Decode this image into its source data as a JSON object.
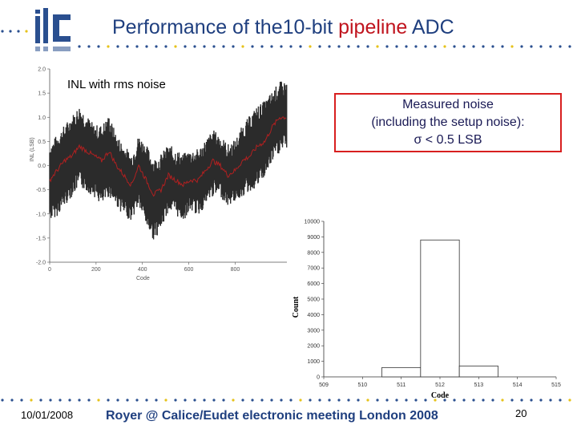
{
  "slide": {
    "title_pre": "Performance of the10-bit ",
    "title_highlight": "pipeline",
    "title_post": " ADC",
    "inl_label": "INL with rms noise",
    "noise_box_line1": "Measured noise",
    "noise_box_line2": "(including the setup noise):",
    "noise_box_line3": "σ < 0.5 LSB",
    "footer_date": "10/01/2008",
    "footer_center": "Royer @ Calice/Eudet electronic meeting London 2008",
    "footer_page": "20"
  },
  "colors": {
    "title_blue": "#1f3f7f",
    "highlight_red": "#c0141e",
    "box_border": "#d81f1f",
    "dot_blue": "#2a4f8f",
    "dot_yellow": "#e6c21a",
    "inl_band": "#2b2b2b",
    "inl_mean": "#b02020"
  },
  "chart_data": [
    {
      "type": "line",
      "title": "",
      "xlabel": "Code",
      "ylabel": "INL (LSB)",
      "xlim": [
        0,
        1023
      ],
      "ylim": [
        -2.0,
        2.0
      ],
      "xticks": [
        "0",
        "200",
        "400",
        "600",
        "800"
      ],
      "yticks": [
        "2.0",
        "1.5",
        "1.0",
        "0.5",
        "0.0",
        "-0.5",
        "-1.0",
        "-1.5",
        "-2.0"
      ],
      "x": [
        0,
        32,
        64,
        96,
        128,
        160,
        192,
        224,
        256,
        288,
        320,
        352,
        384,
        416,
        448,
        480,
        512,
        544,
        576,
        608,
        640,
        672,
        704,
        736,
        768,
        800,
        832,
        864,
        896,
        928,
        960,
        992,
        1023
      ],
      "series": [
        {
          "name": "",
          "mean": [
            -0.3,
            -0.1,
            0.1,
            0.2,
            0.4,
            0.3,
            0.2,
            0.1,
            0.3,
            0.0,
            -0.2,
            -0.4,
            0.0,
            -0.3,
            -0.6,
            -0.5,
            -0.2,
            -0.3,
            -0.4,
            -0.3,
            -0.3,
            -0.1,
            0.1,
            0.0,
            -0.2,
            -0.1,
            0.1,
            0.2,
            0.4,
            0.5,
            0.8,
            1.0,
            1.0
          ],
          "upper": [
            0.2,
            0.4,
            0.6,
            0.8,
            1.0,
            0.8,
            0.6,
            0.6,
            0.8,
            0.4,
            0.2,
            0.0,
            0.4,
            0.2,
            -0.1,
            0.0,
            0.2,
            0.1,
            0.0,
            0.1,
            0.1,
            0.3,
            0.5,
            0.4,
            0.2,
            0.3,
            0.6,
            0.8,
            1.0,
            1.1,
            1.3,
            1.5,
            1.5
          ],
          "lower": [
            -0.9,
            -0.8,
            -0.6,
            -0.4,
            -0.2,
            -0.3,
            -0.4,
            -0.6,
            -0.4,
            -0.6,
            -0.8,
            -0.9,
            -0.6,
            -1.0,
            -1.3,
            -1.1,
            -0.7,
            -0.8,
            -0.9,
            -0.7,
            -0.8,
            -0.6,
            -0.4,
            -0.4,
            -0.6,
            -0.5,
            -0.4,
            -0.3,
            -0.2,
            0.0,
            0.3,
            0.5,
            0.6
          ]
        }
      ]
    },
    {
      "type": "bar",
      "title": "",
      "xlabel": "Code",
      "ylabel": "Count",
      "categories": [
        "509",
        "510",
        "511",
        "512",
        "513",
        "514",
        "515"
      ],
      "values": [
        0,
        0,
        600,
        8800,
        700,
        0,
        0
      ],
      "ylim": [
        0,
        10000
      ],
      "yticks": [
        "0",
        "1000",
        "2000",
        "3000",
        "4000",
        "5000",
        "6000",
        "7000",
        "8000",
        "9000",
        "10000"
      ]
    }
  ]
}
